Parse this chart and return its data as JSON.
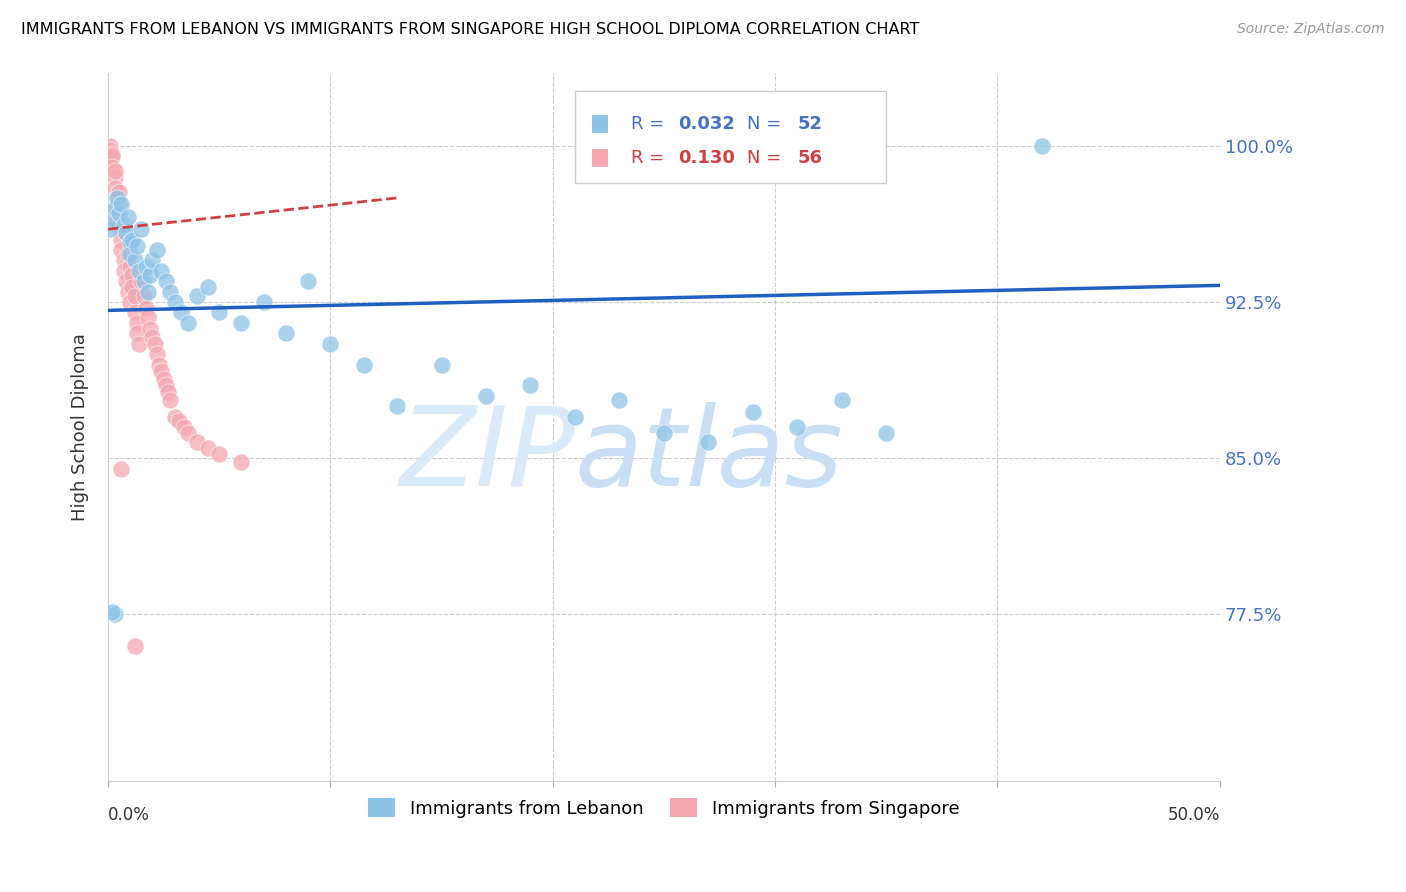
{
  "title": "IMMIGRANTS FROM LEBANON VS IMMIGRANTS FROM SINGAPORE HIGH SCHOOL DIPLOMA CORRELATION CHART",
  "source": "Source: ZipAtlas.com",
  "ylabel": "High School Diploma",
  "ytick_values": [
    0.775,
    0.85,
    0.925,
    1.0
  ],
  "ytick_labels": [
    "77.5%",
    "85.0%",
    "92.5%",
    "100.0%"
  ],
  "xlim": [
    0.0,
    0.5
  ],
  "ylim": [
    0.695,
    1.035
  ],
  "legend_label1": "Immigrants from Lebanon",
  "legend_label2": "Immigrants from Singapore",
  "R1": "0.032",
  "N1": "52",
  "R2": "0.130",
  "N2": "56",
  "color1": "#8ec4e8",
  "color2": "#f4a7b0",
  "trendline1_color": "#2060c0",
  "trendline2_color": "#d04040",
  "watermark_zip_color": "#daeaf8",
  "watermark_atlas_color": "#c8dff5",
  "lebanon_x": [
    0.001,
    0.002,
    0.003,
    0.004,
    0.005,
    0.006,
    0.007,
    0.008,
    0.009,
    0.01,
    0.01,
    0.011,
    0.012,
    0.013,
    0.014,
    0.015,
    0.016,
    0.017,
    0.018,
    0.019,
    0.02,
    0.022,
    0.024,
    0.026,
    0.028,
    0.03,
    0.033,
    0.036,
    0.04,
    0.045,
    0.05,
    0.06,
    0.07,
    0.08,
    0.09,
    0.1,
    0.115,
    0.13,
    0.15,
    0.17,
    0.19,
    0.21,
    0.23,
    0.25,
    0.27,
    0.29,
    0.31,
    0.33,
    0.35,
    0.003,
    0.002,
    0.42
  ],
  "lebanon_y": [
    0.96,
    0.965,
    0.97,
    0.975,
    0.968,
    0.972,
    0.962,
    0.958,
    0.966,
    0.954,
    0.948,
    0.955,
    0.945,
    0.952,
    0.94,
    0.96,
    0.935,
    0.942,
    0.93,
    0.938,
    0.945,
    0.95,
    0.94,
    0.935,
    0.93,
    0.925,
    0.92,
    0.915,
    0.928,
    0.932,
    0.92,
    0.915,
    0.925,
    0.91,
    0.935,
    0.905,
    0.895,
    0.875,
    0.895,
    0.88,
    0.885,
    0.87,
    0.878,
    0.862,
    0.858,
    0.872,
    0.865,
    0.878,
    0.862,
    0.775,
    0.776,
    1.0
  ],
  "singapore_x": [
    0.001,
    0.001,
    0.002,
    0.002,
    0.002,
    0.003,
    0.003,
    0.003,
    0.004,
    0.004,
    0.004,
    0.005,
    0.005,
    0.005,
    0.005,
    0.006,
    0.006,
    0.007,
    0.007,
    0.008,
    0.008,
    0.009,
    0.009,
    0.01,
    0.01,
    0.011,
    0.011,
    0.012,
    0.012,
    0.013,
    0.013,
    0.014,
    0.015,
    0.016,
    0.017,
    0.018,
    0.019,
    0.02,
    0.021,
    0.022,
    0.023,
    0.024,
    0.025,
    0.026,
    0.027,
    0.028,
    0.03,
    0.032,
    0.034,
    0.036,
    0.04,
    0.045,
    0.05,
    0.06,
    0.006,
    0.012
  ],
  "singapore_y": [
    1.0,
    0.998,
    0.996,
    0.995,
    0.99,
    0.985,
    0.98,
    0.988,
    0.975,
    0.97,
    0.965,
    0.978,
    0.972,
    0.968,
    0.96,
    0.955,
    0.95,
    0.945,
    0.94,
    0.958,
    0.935,
    0.93,
    0.948,
    0.942,
    0.925,
    0.938,
    0.932,
    0.92,
    0.928,
    0.915,
    0.91,
    0.905,
    0.935,
    0.928,
    0.922,
    0.918,
    0.912,
    0.908,
    0.905,
    0.9,
    0.895,
    0.892,
    0.888,
    0.885,
    0.882,
    0.878,
    0.87,
    0.868,
    0.865,
    0.862,
    0.858,
    0.855,
    0.852,
    0.848,
    0.845,
    0.76
  ]
}
